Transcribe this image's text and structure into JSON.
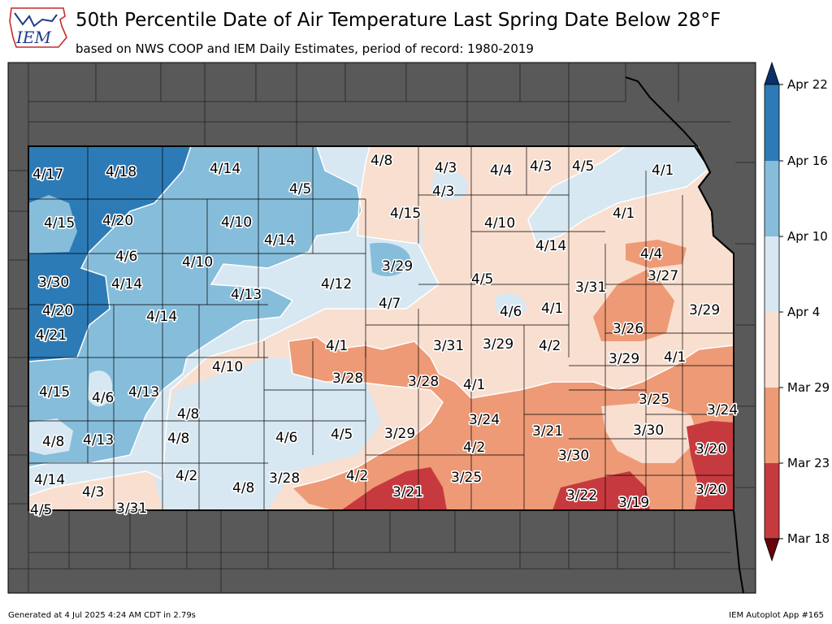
{
  "header": {
    "logo_text": "IEM",
    "title": "50th Percentile Date of Air Temperature Last Spring Date Below 28°F",
    "subtitle": "based on NWS COOP and IEM Daily Estimates, period of record: 1980-2019"
  },
  "colorbar": {
    "labels": [
      "Apr 22",
      "Apr 16",
      "Apr 10",
      "Apr 4",
      "Mar 29",
      "Mar 23",
      "Mar 18"
    ],
    "colors": [
      "#08306b",
      "#2c7bb6",
      "#86bddb",
      "#d8e8f2",
      "#f9dfd0",
      "#ee9a76",
      "#c63a3f",
      "#67000d"
    ]
  },
  "map_labels": [
    "4/17",
    "4/18",
    "4/14",
    "4/8",
    "4/3",
    "4/4",
    "4/3",
    "4/5",
    "4/1",
    "4/15",
    "4/5",
    "4/3",
    "4/15",
    "4/20",
    "4/10",
    "4/10",
    "4/1",
    "4/6",
    "4/14",
    "4/10",
    "4/14",
    "4/4",
    "3/29",
    "4/14",
    "4/13",
    "4/12",
    "4/5",
    "3/27",
    "3/30",
    "3/31",
    "4/20",
    "4/7",
    "4/6",
    "4/1",
    "3/29",
    "4/21",
    "4/14",
    "3/26",
    "4/1",
    "3/31",
    "3/29",
    "4/2",
    "3/29",
    "4/1",
    "4/10",
    "3/28",
    "3/28",
    "4/1",
    "4/15",
    "4/6",
    "4/13",
    "3/24",
    "3/25",
    "4/8",
    "3/24",
    "3/21",
    "3/30",
    "4/8",
    "4/13",
    "4/8",
    "4/6",
    "4/5",
    "3/29",
    "4/2",
    "3/30",
    "3/20",
    "4/14",
    "4/2",
    "3/28",
    "4/2",
    "3/25",
    "4/3",
    "4/8",
    "3/21",
    "3/22",
    "3/19",
    "3/20",
    "4/5",
    "3/31"
  ],
  "footer": {
    "left": "Generated at 4 Jul 2025 4:24 AM CDT in 2.79s",
    "right": "IEM Autoplot App #165"
  }
}
